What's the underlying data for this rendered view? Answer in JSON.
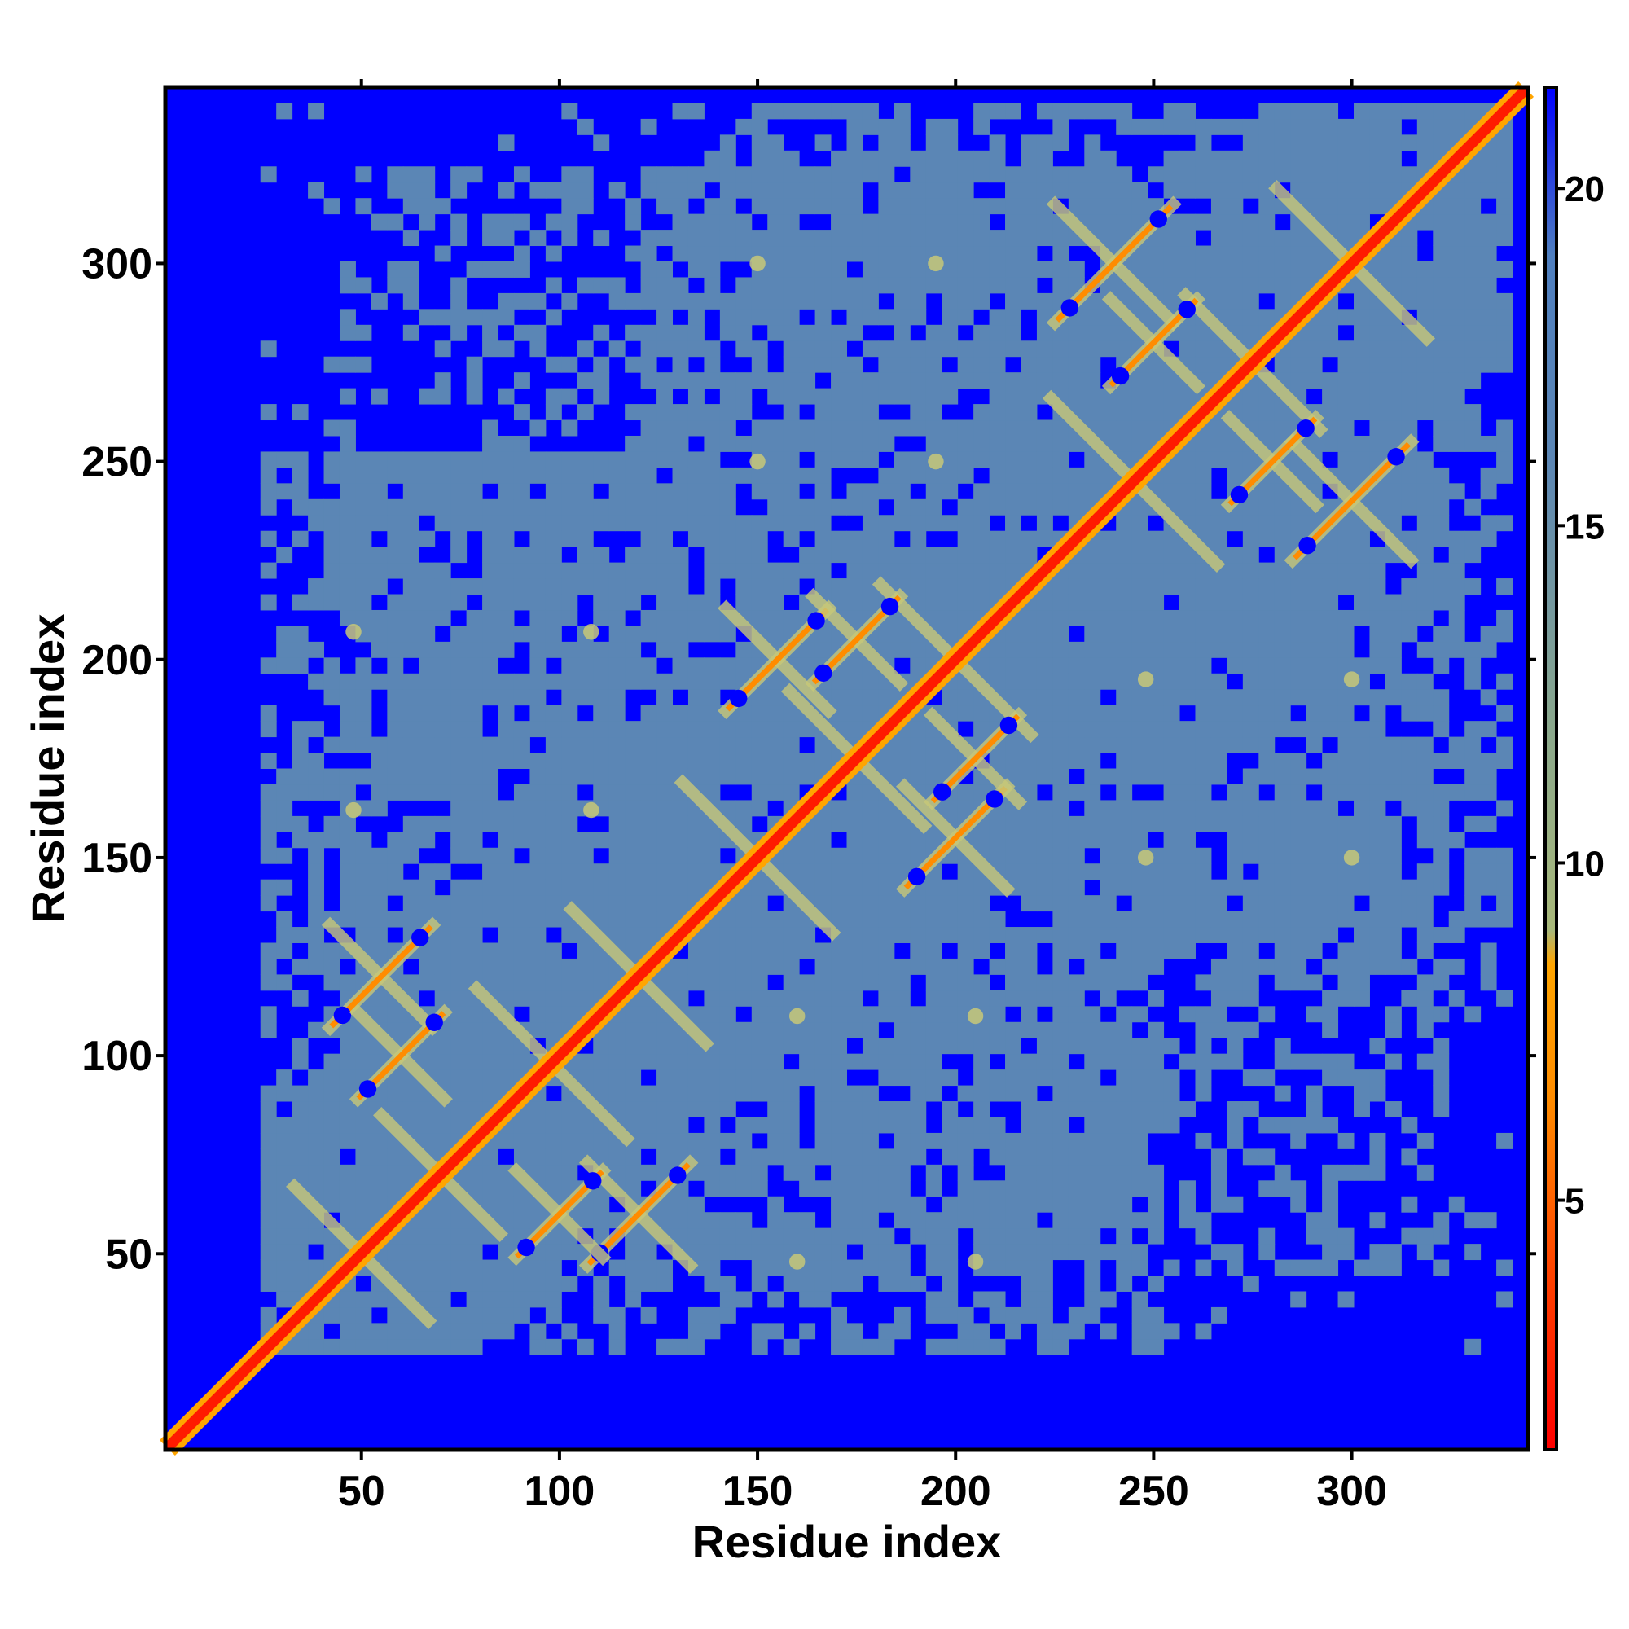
{
  "chart_data": {
    "type": "heatmap",
    "title": "",
    "xlabel": "Residue index",
    "ylabel": "Residue index",
    "xlim": [
      1,
      344
    ],
    "ylim": [
      1,
      344
    ],
    "x_ticks": [
      "50",
      "100",
      "150",
      "200",
      "250",
      "300"
    ],
    "x_tick_values": [
      50,
      100,
      150,
      200,
      250,
      300
    ],
    "y_ticks": [
      "50",
      "100",
      "150",
      "200",
      "250",
      "300"
    ],
    "y_tick_values": [
      50,
      100,
      150,
      200,
      250,
      300
    ],
    "colorbar": {
      "range": [
        1.3,
        21.5
      ],
      "ticks": [
        "5",
        "10",
        "15",
        "20"
      ],
      "tick_values": [
        5,
        10,
        15,
        20
      ],
      "colors": [
        {
          "value": 1.3,
          "color": "#ff0000"
        },
        {
          "value": 4.0,
          "color": "#ff4500"
        },
        {
          "value": 6.5,
          "color": "#ff8c00"
        },
        {
          "value": 8.5,
          "color": "#ffa500"
        },
        {
          "value": 9.0,
          "color": "#a8b87a"
        },
        {
          "value": 12.0,
          "color": "#8aa88c"
        },
        {
          "value": 16.0,
          "color": "#5b86b5"
        },
        {
          "value": 19.0,
          "color": "#4f7fbf"
        },
        {
          "value": 21.5,
          "color": "#0000ff"
        }
      ]
    },
    "background_color": "#0000ff",
    "contact_color": "#5b86b5",
    "diagonal_color": "#ff1a00",
    "contact_region": {
      "from": 25,
      "to": 340
    },
    "diagonal_motifs": [
      {
        "center": 50,
        "size": 18
      },
      {
        "center": 70,
        "size": 16
      },
      {
        "center": 98,
        "size": 20
      },
      {
        "center": 120,
        "size": 18
      },
      {
        "center": 150,
        "size": 20
      },
      {
        "center": 175,
        "size": 18
      },
      {
        "center": 200,
        "size": 20
      },
      {
        "center": 245,
        "size": 22
      },
      {
        "center": 275,
        "size": 18
      },
      {
        "center": 300,
        "size": 20
      }
    ],
    "off_diagonal_motifs": [
      {
        "x": 55,
        "y": 120,
        "size": 14
      },
      {
        "x": 60,
        "y": 100,
        "size": 12
      },
      {
        "x": 120,
        "y": 60,
        "size": 14
      },
      {
        "x": 100,
        "y": 60,
        "size": 12
      },
      {
        "x": 155,
        "y": 200,
        "size": 14
      },
      {
        "x": 200,
        "y": 155,
        "size": 14
      },
      {
        "x": 175,
        "y": 205,
        "size": 12
      },
      {
        "x": 205,
        "y": 175,
        "size": 12
      },
      {
        "x": 240,
        "y": 300,
        "size": 16
      },
      {
        "x": 300,
        "y": 240,
        "size": 16
      },
      {
        "x": 250,
        "y": 280,
        "size": 12
      },
      {
        "x": 280,
        "y": 250,
        "size": 12
      }
    ],
    "spots": [
      {
        "x": 48,
        "y": 162
      },
      {
        "x": 108,
        "y": 162
      },
      {
        "x": 48,
        "y": 207
      },
      {
        "x": 108,
        "y": 207
      },
      {
        "x": 160,
        "y": 110
      },
      {
        "x": 160,
        "y": 48
      },
      {
        "x": 205,
        "y": 110
      },
      {
        "x": 205,
        "y": 48
      },
      {
        "x": 150,
        "y": 300
      },
      {
        "x": 150,
        "y": 250
      },
      {
        "x": 195,
        "y": 300
      },
      {
        "x": 195,
        "y": 250
      },
      {
        "x": 248,
        "y": 150
      },
      {
        "x": 248,
        "y": 195
      },
      {
        "x": 300,
        "y": 150
      },
      {
        "x": 300,
        "y": 195
      }
    ]
  }
}
